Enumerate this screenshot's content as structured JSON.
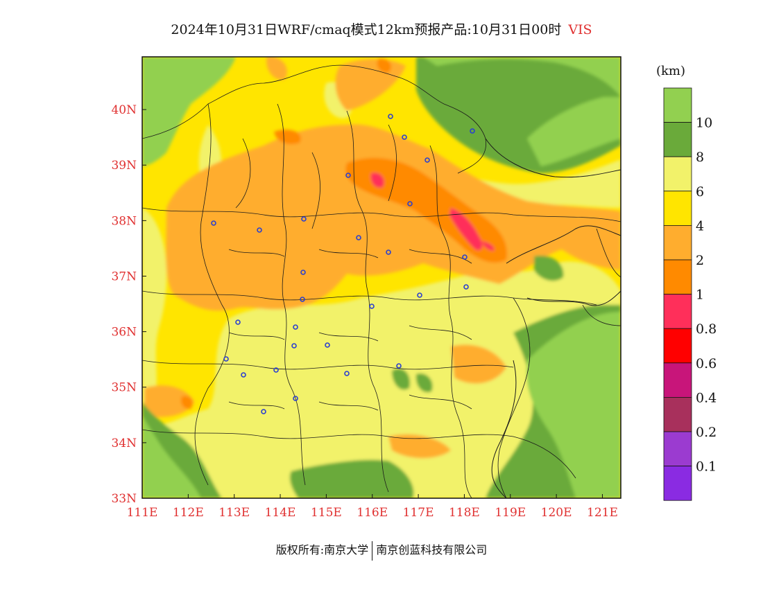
{
  "title": {
    "main": "2024年10月31日WRF/cmaq模式12km预报产品:10月31日00时",
    "variable": "VIS"
  },
  "footer": {
    "left": "版权所有:南京大学",
    "right": "南京创蓝科技有限公司"
  },
  "map": {
    "lon_labels": [
      "111E",
      "112E",
      "113E",
      "114E",
      "115E",
      "116E",
      "117E",
      "118E",
      "119E",
      "120E",
      "121E"
    ],
    "lat_labels": [
      "33N",
      "34N",
      "35N",
      "36N",
      "37N",
      "38N",
      "39N",
      "40N"
    ],
    "lon_range": [
      111,
      121.4
    ],
    "lat_range": [
      33,
      40.95
    ],
    "tick_label_color": "#e03030"
  },
  "legend": {
    "unit": "(km)",
    "labels": [
      "10",
      "8",
      "6",
      "4",
      "2",
      "1",
      "0.8",
      "0.6",
      "0.4",
      "0.2",
      "0.1"
    ],
    "colors": [
      "#92d050",
      "#6aaa3a",
      "#f2f26a",
      "#ffe500",
      "#ffad2e",
      "#ff8a00",
      "#ff2f5a",
      "#ff0000",
      "#c8157a",
      "#a8305c",
      "#9b3bd0",
      "#8a2be2"
    ]
  }
}
